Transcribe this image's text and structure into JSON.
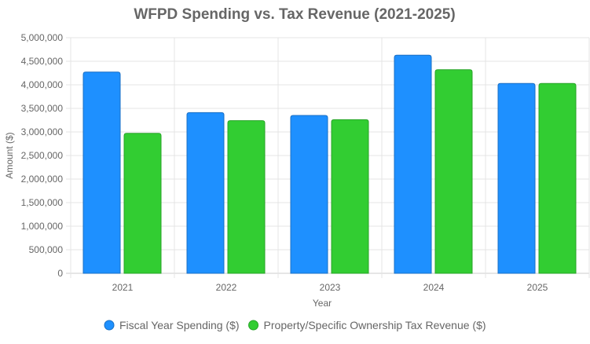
{
  "chart_data": {
    "type": "bar",
    "title": "WFPD Spending vs. Tax Revenue (2021-2025)",
    "xlabel": "Year",
    "ylabel": "Amount ($)",
    "ylim": [
      0,
      5000000
    ],
    "yticks": [
      0,
      500000,
      1000000,
      1500000,
      2000000,
      2500000,
      3000000,
      3500000,
      4000000,
      4500000,
      5000000
    ],
    "ytick_labels": [
      "0",
      "500,000",
      "1,000,000",
      "1,500,000",
      "2,000,000",
      "2,500,000",
      "3,000,000",
      "3,500,000",
      "4,000,000",
      "4,500,000",
      "5,000,000"
    ],
    "categories": [
      "2021",
      "2022",
      "2023",
      "2024",
      "2025"
    ],
    "grid": true,
    "legend_position": "bottom",
    "series": [
      {
        "name": "Fiscal Year Spending ($)",
        "color": "#1e90ff",
        "border": "#1a6fc4",
        "values": [
          4270000,
          3410000,
          3350000,
          4630000,
          4030000
        ]
      },
      {
        "name": "Property/Specific Ownership Tax Revenue ($)",
        "color": "#32cd32",
        "border": "#28a428",
        "values": [
          2970000,
          3240000,
          3260000,
          4320000,
          4030000
        ]
      }
    ]
  }
}
